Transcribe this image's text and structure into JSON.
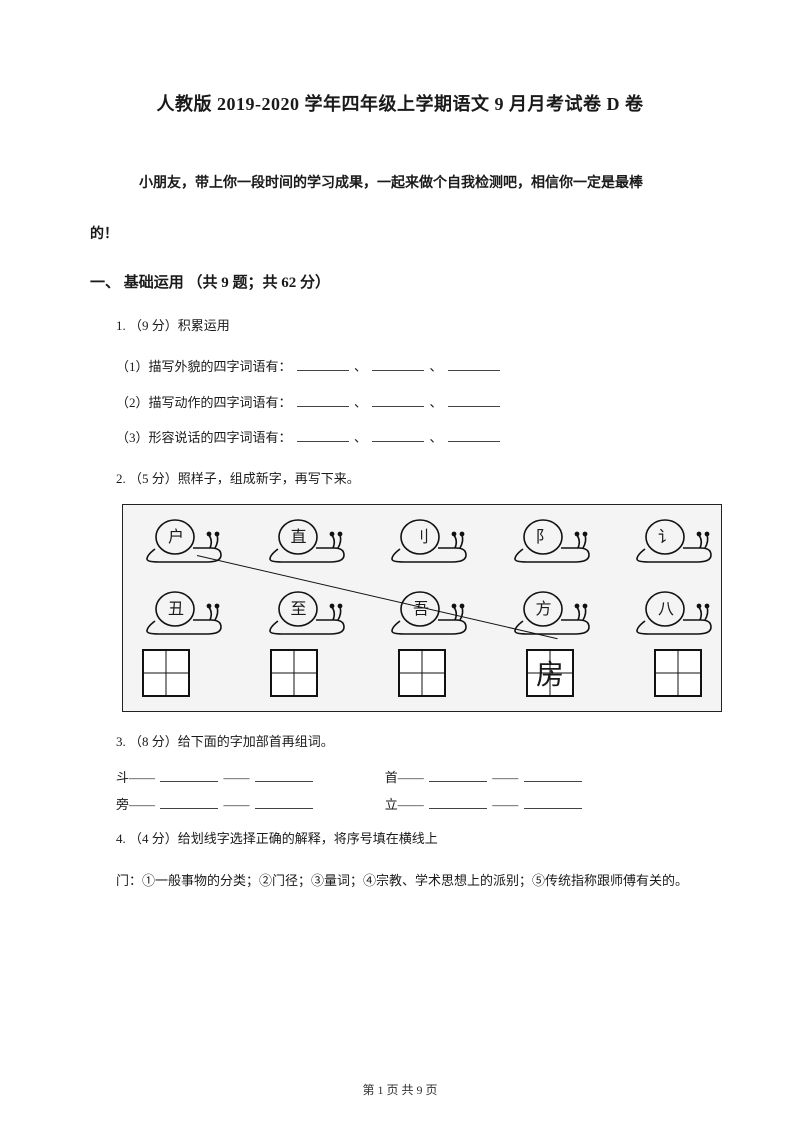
{
  "title": "人教版 2019-2020 学年四年级上学期语文 9 月月考试卷 D 卷",
  "intro_line1": "小朋友，带上你一段时间的学习成果，一起来做个自我检测吧，相信你一定是最棒",
  "intro_line2": "的！",
  "section1": {
    "heading": "一、 基础运用 （共 9 题；共 62 分）",
    "q1": {
      "stem": "1. （9 分）积累运用",
      "sub1": "（1）描写外貌的四字词语有：",
      "sub2": "（2）描写动作的四字词语有：",
      "sub3": "（3）形容说话的四字词语有：",
      "sep": "、"
    },
    "q2": {
      "stem": "2. （5 分）照样子，组成新字，再写下来。",
      "top_chars": [
        "户",
        "直",
        "刂",
        "阝",
        "讠"
      ],
      "bottom_chars": [
        "丑",
        "至",
        "吾",
        "方",
        "八"
      ],
      "example_char": "房",
      "box_count": 5,
      "example_index": 3,
      "colors": {
        "bg": "#f4f4f4",
        "stroke": "#111111"
      }
    },
    "q3": {
      "stem": "3. （8 分）给下面的字加部首再组词。",
      "pairs": [
        [
          "斗——",
          "首——"
        ],
        [
          "旁——",
          "立——"
        ]
      ],
      "dash": "——"
    },
    "q4": {
      "stem": "4. （4 分）给划线字选择正确的解释，将序号填在横线上",
      "options": "门：①一般事物的分类；②门径；③量词；④宗教、学术思想上的派别；⑤传统指称跟师傅有关的。"
    }
  },
  "footer": "第 1 页 共 9 页"
}
